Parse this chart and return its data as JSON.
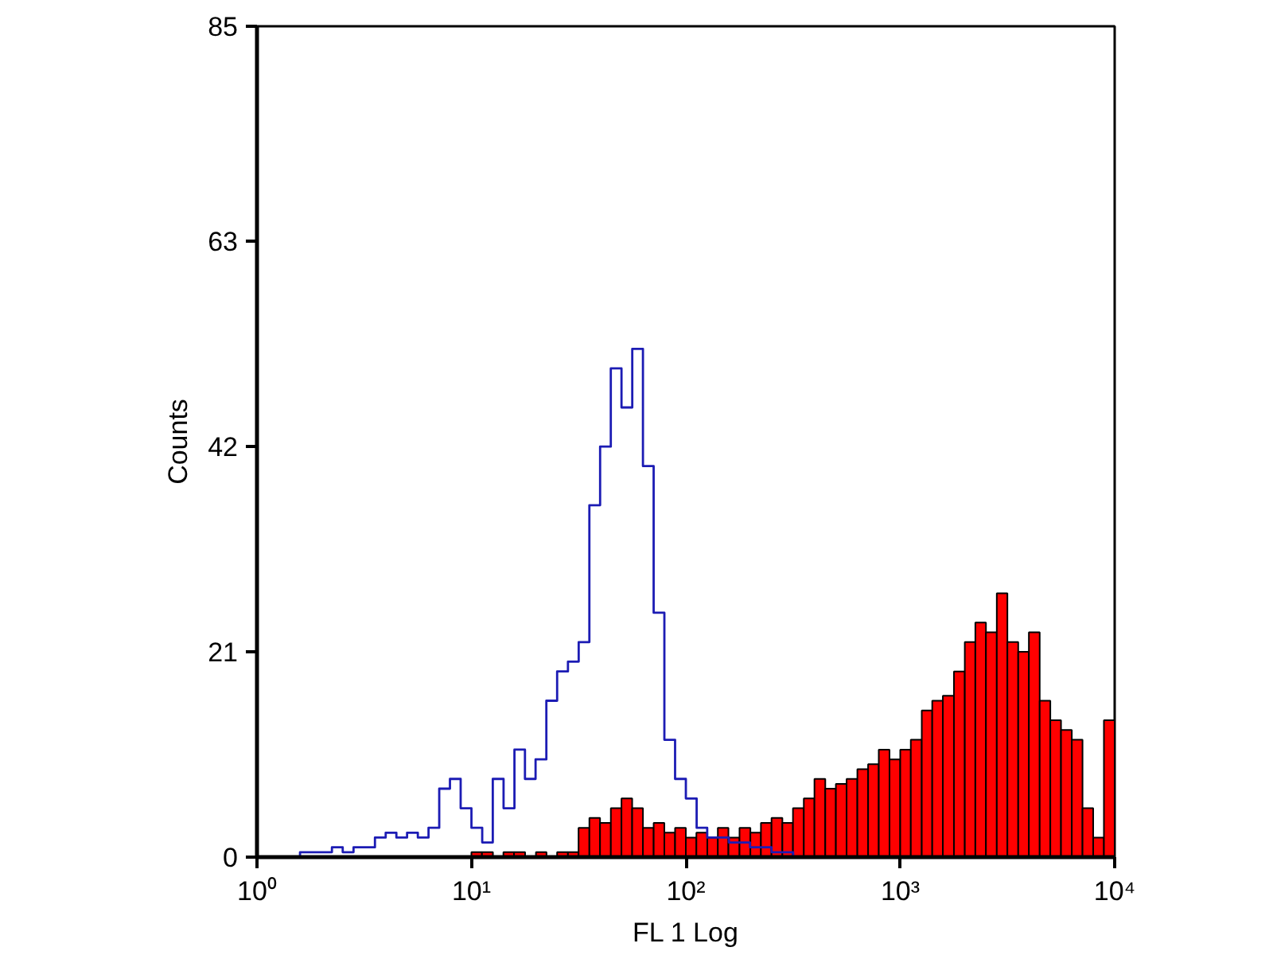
{
  "chart_data": {
    "type": "histogram",
    "xlabel": "FL 1 Log",
    "ylabel": "Counts",
    "log": "x",
    "xlim": [
      1,
      10000
    ],
    "ylim": [
      0,
      85
    ],
    "xticks": [
      {
        "value": 1,
        "label": "10⁰"
      },
      {
        "value": 10,
        "label": "10¹"
      },
      {
        "value": 100,
        "label": "10²"
      },
      {
        "value": 1000,
        "label": "10³"
      },
      {
        "value": 10000,
        "label": "10⁴"
      }
    ],
    "yticks": [
      0,
      21,
      42,
      63,
      85
    ],
    "bins": [
      10,
      11.2,
      12.6,
      14.1,
      15.8,
      17.8,
      20,
      22.4,
      25.1,
      28.2,
      31.6,
      35.5,
      39.8,
      44.7,
      50.1,
      56.2,
      63.1,
      70.8,
      79.4,
      89.1,
      100,
      112,
      126,
      141,
      158,
      178,
      200,
      224,
      251,
      282,
      316,
      355,
      398,
      447,
      501,
      562,
      631,
      708,
      794,
      891,
      1000,
      1120,
      1260,
      1410,
      1580,
      1780,
      2000,
      2240,
      2510,
      2820,
      3160,
      3550,
      3980,
      4470,
      5010,
      5620,
      6310,
      7080,
      7940,
      8910,
      10000
    ],
    "series": [
      {
        "color": "#ff0000",
        "values": [
          0.5,
          0.5,
          0,
          0.5,
          0.5,
          0,
          0.5,
          0,
          0.5,
          0.5,
          3,
          4,
          3.5,
          5,
          6,
          5,
          3,
          3.5,
          2.5,
          3,
          2,
          2.5,
          2,
          3,
          2,
          3,
          2.5,
          3.5,
          4,
          3.5,
          5,
          6,
          8,
          7,
          7.5,
          8,
          9,
          9.5,
          11,
          10,
          11,
          12,
          15,
          16,
          16.5,
          19,
          22,
          24,
          23,
          27,
          22,
          21,
          23,
          16,
          14,
          13,
          12,
          5,
          2,
          14
        ]
      },
      {
        "type": "step",
        "color": "#1c1cb4",
        "x": [
          1.5,
          1.68,
          1.88,
          2.11,
          2.37,
          2.66,
          2.99,
          3.35,
          3.76,
          4.22,
          4.73,
          5.31,
          5.96,
          6.68,
          7.5,
          8.41,
          9.44,
          10.6,
          11.9,
          13.3,
          15,
          16.8,
          18.8,
          21.1,
          23.7,
          26.6,
          29.9,
          33.5,
          37.6,
          42.2,
          47.3,
          53.1,
          59.6,
          66.8,
          75,
          84.1,
          94.4,
          106,
          119,
          133,
          150,
          168,
          188,
          211,
          237,
          266,
          299,
          335
        ],
        "values": [
          0,
          0.5,
          0.5,
          0.5,
          1,
          0.5,
          1,
          1,
          2,
          2.5,
          2,
          2.5,
          2,
          3,
          7,
          8,
          5,
          3,
          1.5,
          8,
          5,
          11,
          8,
          10,
          16,
          19,
          20,
          22,
          36,
          42,
          50,
          46,
          52,
          40,
          25,
          12,
          8,
          6,
          3,
          2,
          2,
          1.5,
          1.5,
          1,
          1,
          0.5,
          0.5,
          0
        ]
      }
    ]
  }
}
